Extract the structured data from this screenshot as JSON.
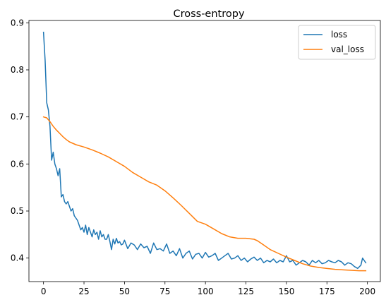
{
  "chart_data": {
    "type": "line",
    "title": "Cross-entropy",
    "xlabel": "",
    "ylabel": "",
    "xlim": [
      -9,
      208
    ],
    "ylim": [
      0.35,
      0.905
    ],
    "xticks": [
      0,
      25,
      50,
      75,
      100,
      125,
      150,
      175,
      200
    ],
    "xtick_labels": [
      "0",
      "25",
      "50",
      "75",
      "100",
      "125",
      "150",
      "175",
      "200"
    ],
    "yticks": [
      0.4,
      0.5,
      0.6,
      0.7,
      0.8,
      0.9
    ],
    "ytick_labels": [
      "0.4",
      "0.5",
      "0.6",
      "0.7",
      "0.8",
      "0.9"
    ],
    "grid": false,
    "legend_position": "top-right",
    "series": [
      {
        "name": "loss",
        "color": "#1f77b4",
        "x": [
          0,
          1,
          2,
          3,
          4,
          5,
          6,
          7,
          8,
          9,
          10,
          11,
          12,
          13,
          14,
          15,
          16,
          17,
          18,
          19,
          20,
          21,
          22,
          23,
          24,
          25,
          26,
          27,
          28,
          29,
          30,
          31,
          32,
          33,
          34,
          35,
          36,
          37,
          38,
          39,
          40,
          41,
          42,
          43,
          44,
          45,
          46,
          47,
          48,
          49,
          50,
          52,
          54,
          56,
          58,
          60,
          62,
          64,
          66,
          68,
          70,
          72,
          74,
          76,
          78,
          80,
          82,
          84,
          86,
          88,
          90,
          92,
          94,
          96,
          98,
          100,
          102,
          104,
          106,
          108,
          110,
          112,
          114,
          116,
          118,
          120,
          122,
          124,
          126,
          128,
          130,
          132,
          134,
          136,
          138,
          140,
          142,
          144,
          146,
          148,
          150,
          152,
          154,
          156,
          158,
          160,
          162,
          164,
          166,
          168,
          170,
          172,
          174,
          176,
          178,
          180,
          182,
          184,
          186,
          188,
          190,
          192,
          194,
          196,
          197,
          198,
          199
        ],
        "values": [
          0.88,
          0.82,
          0.73,
          0.715,
          0.68,
          0.608,
          0.625,
          0.6,
          0.59,
          0.575,
          0.59,
          0.53,
          0.535,
          0.52,
          0.515,
          0.52,
          0.51,
          0.5,
          0.505,
          0.49,
          0.485,
          0.48,
          0.47,
          0.46,
          0.465,
          0.455,
          0.47,
          0.45,
          0.465,
          0.455,
          0.445,
          0.46,
          0.45,
          0.455,
          0.44,
          0.458,
          0.445,
          0.45,
          0.44,
          0.44,
          0.45,
          0.435,
          0.418,
          0.44,
          0.43,
          0.442,
          0.432,
          0.435,
          0.428,
          0.43,
          0.438,
          0.42,
          0.432,
          0.428,
          0.418,
          0.43,
          0.422,
          0.425,
          0.41,
          0.432,
          0.418,
          0.42,
          0.415,
          0.43,
          0.41,
          0.415,
          0.405,
          0.42,
          0.4,
          0.41,
          0.415,
          0.398,
          0.408,
          0.41,
          0.4,
          0.412,
          0.402,
          0.405,
          0.41,
          0.395,
          0.4,
          0.405,
          0.41,
          0.398,
          0.4,
          0.405,
          0.395,
          0.4,
          0.392,
          0.398,
          0.402,
          0.395,
          0.4,
          0.39,
          0.395,
          0.392,
          0.398,
          0.39,
          0.395,
          0.392,
          0.405,
          0.392,
          0.395,
          0.385,
          0.39,
          0.395,
          0.392,
          0.385,
          0.395,
          0.39,
          0.395,
          0.388,
          0.39,
          0.395,
          0.392,
          0.39,
          0.395,
          0.392,
          0.385,
          0.39,
          0.388,
          0.382,
          0.378,
          0.385,
          0.4,
          0.395,
          0.39
        ]
      },
      {
        "name": "val_loss",
        "color": "#ff7f0e",
        "x": [
          0,
          2,
          4,
          6,
          8,
          10,
          12,
          14,
          16,
          18,
          20,
          25,
          30,
          35,
          40,
          45,
          50,
          55,
          60,
          65,
          70,
          75,
          80,
          85,
          90,
          95,
          100,
          105,
          110,
          115,
          120,
          125,
          130,
          132,
          135,
          140,
          145,
          150,
          155,
          160,
          165,
          170,
          175,
          180,
          185,
          190,
          195,
          199
        ],
        "values": [
          0.7,
          0.698,
          0.69,
          0.68,
          0.672,
          0.665,
          0.658,
          0.652,
          0.647,
          0.644,
          0.641,
          0.636,
          0.63,
          0.623,
          0.615,
          0.605,
          0.595,
          0.582,
          0.572,
          0.562,
          0.555,
          0.543,
          0.528,
          0.512,
          0.495,
          0.478,
          0.472,
          0.462,
          0.452,
          0.445,
          0.442,
          0.442,
          0.44,
          0.437,
          0.43,
          0.418,
          0.41,
          0.402,
          0.395,
          0.388,
          0.383,
          0.38,
          0.378,
          0.376,
          0.375,
          0.374,
          0.373,
          0.373
        ]
      }
    ]
  }
}
